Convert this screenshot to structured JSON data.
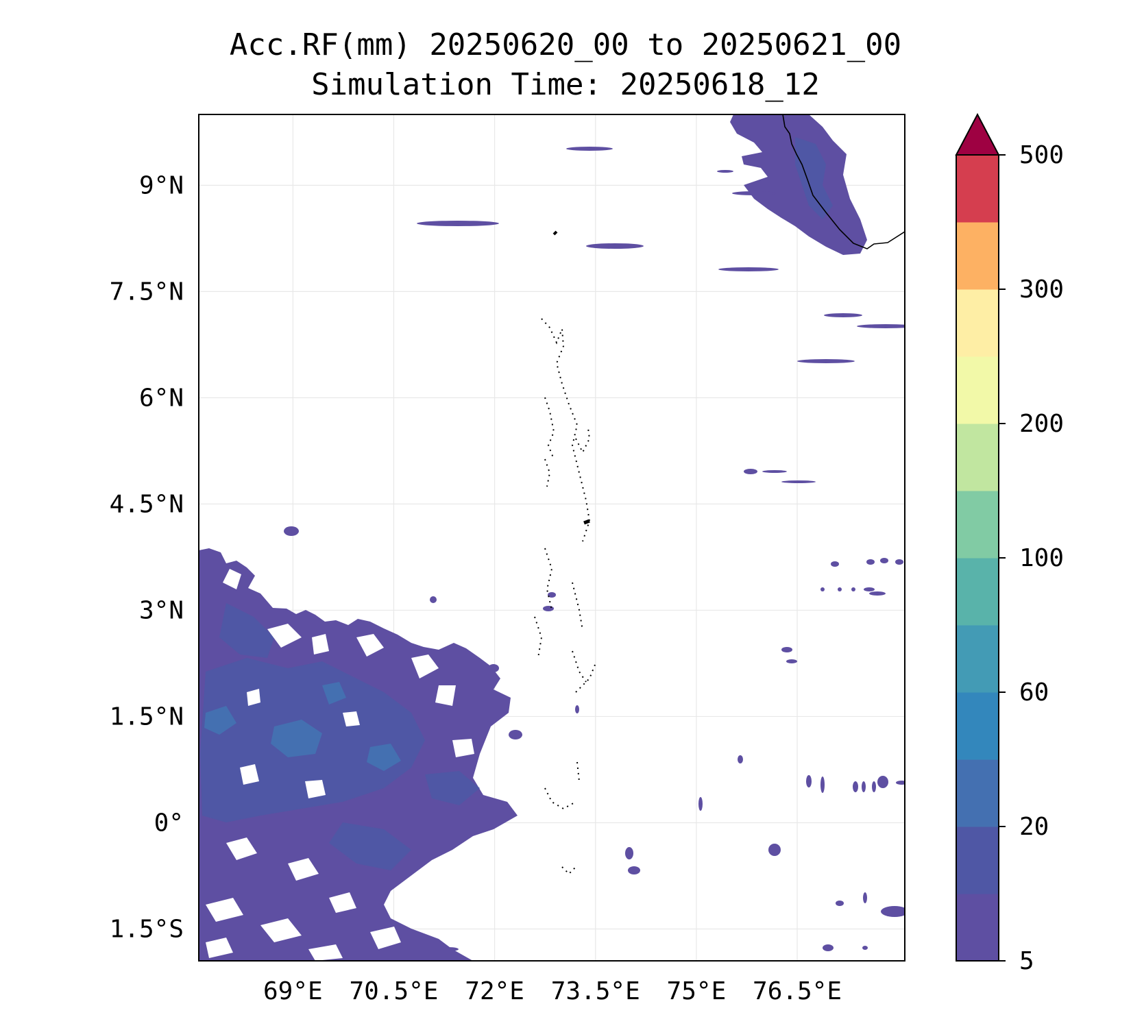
{
  "title": "Acc.RF(mm) 20250620_00 to 20250621_00",
  "subtitle": "Simulation Time: 20250618_12",
  "map": {
    "lon_range": [
      67.6,
      78.1
    ],
    "lat_range": [
      -1.95,
      10.0
    ],
    "lon_ticks": [
      {
        "value": 69,
        "label": "69°E"
      },
      {
        "value": 70.5,
        "label": "70.5°E"
      },
      {
        "value": 72,
        "label": "72°E"
      },
      {
        "value": 73.5,
        "label": "73.5°E"
      },
      {
        "value": 75,
        "label": "75°E"
      },
      {
        "value": 76.5,
        "label": "76.5°E"
      }
    ],
    "lat_ticks": [
      {
        "value": 9,
        "label": "9°N"
      },
      {
        "value": 7.5,
        "label": "7.5°N"
      },
      {
        "value": 6,
        "label": "6°N"
      },
      {
        "value": 4.5,
        "label": "4.5°N"
      },
      {
        "value": 3,
        "label": "3°N"
      },
      {
        "value": 1.5,
        "label": "1.5°N"
      },
      {
        "value": 0,
        "label": "0°"
      },
      {
        "value": -1.5,
        "label": "1.5°S"
      }
    ],
    "grid": true
  },
  "colorbar": {
    "levels": [
      5,
      10,
      20,
      40,
      60,
      80,
      100,
      150,
      200,
      250,
      300,
      400,
      500
    ],
    "colors": [
      "#5e4fa2",
      "#4f57a5",
      "#4470b1",
      "#3387bc",
      "#439bb5",
      "#59b3aa",
      "#81cba4",
      "#c1e6a0",
      "#f2f9a8",
      "#feeea5",
      "#fdb163",
      "#d53e4f"
    ],
    "extend_color": "#9e0142",
    "tick_labels": [
      {
        "value": 5,
        "label": "5"
      },
      {
        "value": 20,
        "label": "20"
      },
      {
        "value": 60,
        "label": "60"
      },
      {
        "value": 100,
        "label": "100"
      },
      {
        "value": 200,
        "label": "200"
      },
      {
        "value": 300,
        "label": "300"
      },
      {
        "value": 500,
        "label": "500"
      }
    ]
  },
  "rain_colors": {
    "light": "#5e4fa2",
    "mid": "#4f57a5",
    "heavy": "#4470b1"
  }
}
